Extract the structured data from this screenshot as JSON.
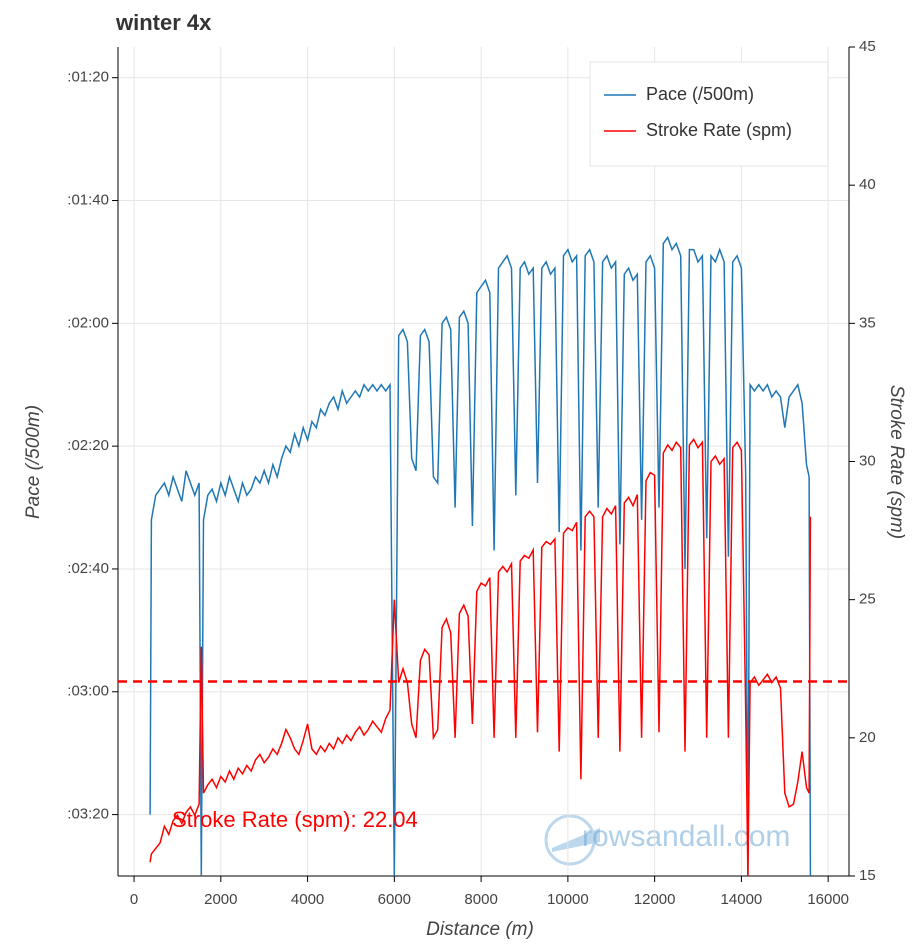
{
  "chart_data": {
    "type": "line",
    "title": "winter 4x",
    "x_label": "Distance (m)",
    "y_label": "Pace (/500m)",
    "y2_label": "Stroke Rate (spm)",
    "xlim": [
      -370,
      16480
    ],
    "xticks": [
      0,
      2000,
      4000,
      6000,
      8000,
      10000,
      12000,
      14000,
      16000
    ],
    "ylim": [
      210,
      75
    ],
    "yticks": [
      {
        "value": 80,
        "label": ":01:20"
      },
      {
        "value": 100,
        "label": ":01:40"
      },
      {
        "value": 120,
        "label": ":02:00"
      },
      {
        "value": 140,
        "label": ":02:20"
      },
      {
        "value": 160,
        "label": ":02:40"
      },
      {
        "value": 180,
        "label": ":03:00"
      },
      {
        "value": 200,
        "label": ":03:20"
      }
    ],
    "y2lim": [
      15,
      45
    ],
    "y2ticks": [
      15,
      20,
      25,
      30,
      35,
      40,
      45
    ],
    "grid": true,
    "legend": "top-right",
    "x": [
      370,
      400,
      500,
      600,
      700,
      800,
      900,
      1000,
      1100,
      1200,
      1300,
      1400,
      1500,
      1550,
      1600,
      1700,
      1800,
      1900,
      2000,
      2100,
      2200,
      2300,
      2400,
      2500,
      2600,
      2700,
      2800,
      2900,
      3000,
      3100,
      3200,
      3300,
      3400,
      3500,
      3600,
      3700,
      3800,
      3900,
      4000,
      4100,
      4200,
      4300,
      4400,
      4500,
      4600,
      4700,
      4800,
      4900,
      5000,
      5100,
      5200,
      5300,
      5400,
      5500,
      5600,
      5700,
      5800,
      5900,
      6000,
      6100,
      6200,
      6300,
      6400,
      6500,
      6600,
      6700,
      6800,
      6900,
      7000,
      7100,
      7200,
      7300,
      7400,
      7500,
      7600,
      7700,
      7800,
      7900,
      8000,
      8100,
      8200,
      8300,
      8400,
      8500,
      8600,
      8700,
      8800,
      8900,
      9000,
      9100,
      9200,
      9300,
      9400,
      9500,
      9600,
      9700,
      9800,
      9900,
      10000,
      10100,
      10200,
      10300,
      10400,
      10500,
      10600,
      10700,
      10800,
      10900,
      11000,
      11100,
      11200,
      11300,
      11400,
      11500,
      11600,
      11700,
      11800,
      11900,
      12000,
      12100,
      12200,
      12300,
      12400,
      12500,
      12600,
      12700,
      12800,
      12900,
      13000,
      13100,
      13200,
      13300,
      13400,
      13500,
      13600,
      13700,
      13800,
      13900,
      14000,
      14100,
      14150,
      14200,
      14300,
      14400,
      14500,
      14600,
      14700,
      14800,
      14900,
      15000,
      15100,
      15200,
      15300,
      15400,
      15500,
      15560,
      15590
    ],
    "series": [
      {
        "name": "Pace (/500m)",
        "color": "#1f77b4",
        "axis": "y",
        "values": [
          200,
          152,
          148,
          147,
          146,
          148,
          145,
          147,
          149,
          144,
          146,
          148,
          146,
          210,
          152,
          148,
          147,
          149,
          146,
          148,
          145,
          147,
          149,
          146,
          148,
          147,
          145,
          146,
          144,
          146,
          143,
          145,
          142,
          140,
          141,
          138,
          140,
          137,
          139,
          136,
          137,
          134,
          135,
          133,
          132,
          134,
          131,
          133,
          132,
          131,
          132,
          130,
          131,
          130,
          131,
          130,
          131,
          130,
          210,
          122,
          121,
          123,
          142,
          144,
          122,
          121,
          123,
          145,
          146,
          120,
          119,
          121,
          150,
          119,
          118,
          120,
          153,
          115,
          114,
          113,
          115,
          157,
          111,
          110,
          109,
          111,
          148,
          111,
          110,
          112,
          111,
          146,
          111,
          110,
          112,
          111,
          154,
          109,
          108,
          110,
          109,
          157,
          109,
          108,
          110,
          150,
          110,
          109,
          111,
          110,
          156,
          112,
          111,
          113,
          112,
          152,
          110,
          109,
          111,
          150,
          107,
          106,
          108,
          107,
          109,
          160,
          108,
          108,
          110,
          109,
          155,
          109,
          110,
          108,
          110,
          158,
          110,
          109,
          111,
          145,
          210,
          130,
          131,
          130,
          131,
          130,
          132,
          131,
          132,
          137,
          132,
          131,
          130,
          133,
          143,
          145,
          210
        ]
      },
      {
        "name": "Stroke Rate (spm)",
        "color": "#ff0000",
        "axis": "y2",
        "values": [
          15.5,
          15.8,
          16,
          16.2,
          16.8,
          16.5,
          17,
          17.2,
          16.9,
          17.3,
          17.5,
          17.2,
          17.6,
          23.3,
          18,
          18.3,
          18.5,
          18.2,
          18.6,
          18.4,
          18.8,
          18.5,
          18.9,
          18.7,
          19,
          18.8,
          19.2,
          19.4,
          19.1,
          19.3,
          19.6,
          19.4,
          19.8,
          20.3,
          20,
          19.6,
          19.4,
          19.9,
          20.5,
          19.6,
          19.4,
          19.7,
          19.5,
          19.8,
          19.6,
          20,
          19.8,
          20.1,
          19.9,
          20.2,
          20.4,
          20.1,
          20.3,
          20.6,
          20.4,
          20.2,
          20.7,
          21,
          25,
          22,
          22.5,
          22,
          20.5,
          20,
          22.8,
          23.2,
          23,
          20,
          20.3,
          24,
          24.3,
          23.8,
          20,
          24.5,
          24.8,
          24.4,
          20.5,
          25.3,
          25.6,
          25.5,
          25.8,
          20,
          26,
          26.2,
          26,
          26.3,
          20,
          26.4,
          26.6,
          26.5,
          26.8,
          20.2,
          26.9,
          27.1,
          27,
          27.2,
          19.5,
          27.4,
          27.6,
          27.5,
          27.8,
          18.5,
          28,
          28.2,
          28,
          20,
          28,
          28.3,
          28.1,
          28.4,
          19.5,
          28.5,
          28.7,
          28.4,
          28.8,
          20,
          29.3,
          29.6,
          29.5,
          20.2,
          30.3,
          30.6,
          30.4,
          30.7,
          30.5,
          19.5,
          30.6,
          30.8,
          30.5,
          30.7,
          20,
          30,
          30.2,
          29.9,
          30.1,
          20,
          30.5,
          30.7,
          30.4,
          21,
          15,
          22,
          22.2,
          21.9,
          22.1,
          22.3,
          22,
          22.2,
          21.8,
          18,
          17.5,
          17.6,
          18.4,
          19.5,
          18.2,
          18,
          28
        ]
      }
    ],
    "hline": {
      "value": 22.04,
      "axis": "y2",
      "color": "#ff0000",
      "label": "Stroke Rate (spm): 22.04"
    },
    "watermark": "rowsandall.com"
  }
}
